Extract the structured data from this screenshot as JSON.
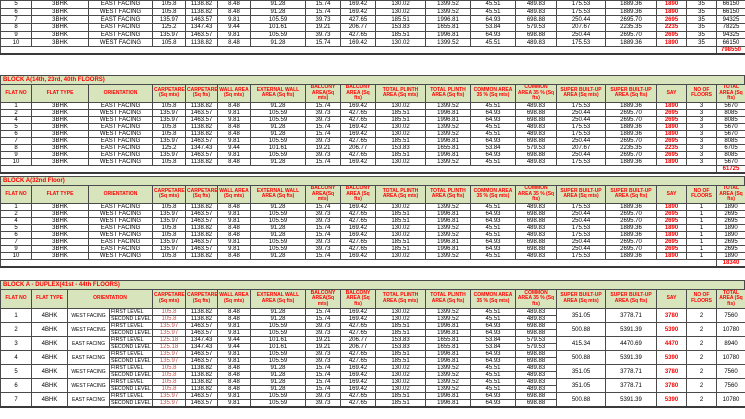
{
  "colors": {
    "header_bg": "#d8e4bc",
    "header_text": "#ff0000",
    "say_text": "#ff0000",
    "duplex_carpet_text": "#c0504d",
    "grid_border": "#4a4a4a"
  },
  "columns": [
    "FLAT NO",
    "FLAT TYPE",
    "ORIENTATION",
    "CARPETAREA (Sq mts)",
    "CARPETAREA (Sq fts)",
    "WALL AREA (Sq mts)",
    "EXTERNAL WALL AREA (Sq fts)",
    "BALCONY AREA(Sq mts)",
    "BALCONY AREA (Sq fts)",
    "TOTAL PLINTH AREA (Sq mts)",
    "TOTAL PLINTH AREA (Sq fts)",
    "COMMON AREA 35 % (Sq mts)",
    "COMMON AREA 35 % (Sq fts)",
    "SUPER BUILT-UP AREA (Sq mts)",
    "SUPER BUILT-UP AREA (Sq fts)",
    "SAY",
    "NO OF FLOORS",
    "TOTAL AREA (Sq fts)"
  ],
  "tables": {
    "top": {
      "rows": [
        [
          "5",
          "3BHK",
          "EAST FACING",
          "105.8",
          "1138.82",
          "8.48",
          "91.28",
          "15.74",
          "169.42",
          "130.02",
          "1399.52",
          "45.51",
          "489.83",
          "175.53",
          "1889.36",
          "1890",
          "35",
          "66150"
        ],
        [
          "6",
          "3BHK",
          "WEST FACING",
          "105.8",
          "1138.82",
          "8.48",
          "91.28",
          "15.74",
          "169.42",
          "130.02",
          "1399.52",
          "45.51",
          "489.83",
          "175.53",
          "1889.36",
          "1890",
          "35",
          "66150"
        ],
        [
          "7",
          "3BHK",
          "EAST FACING",
          "135.97",
          "1463.57",
          "9.81",
          "105.59",
          "39.73",
          "427.65",
          "185.51",
          "1996.81",
          "64.93",
          "698.88",
          "250.44",
          "2695.70",
          "2695",
          "35",
          "94325"
        ],
        [
          "8",
          "3BHK",
          "EAST FACING",
          "125.2",
          "1347.43",
          "9.44",
          "101.61",
          "19.21",
          "206.77",
          "153.83",
          "1655.81",
          "53.84",
          "579.53",
          "207.67",
          "2235.35",
          "2235",
          "35",
          "78225"
        ],
        [
          "9",
          "3BHK",
          "EAST FACING",
          "135.97",
          "1463.57",
          "9.81",
          "105.59",
          "39.73",
          "427.65",
          "185.51",
          "1996.81",
          "64.93",
          "698.88",
          "250.44",
          "2695.70",
          "2695",
          "35",
          "94325"
        ],
        [
          "10",
          "3BHK",
          "WEST FACING",
          "105.8",
          "1138.82",
          "8.48",
          "91.28",
          "15.74",
          "169.42",
          "130.02",
          "1399.52",
          "45.51",
          "489.83",
          "175.53",
          "1889.36",
          "1890",
          "35",
          "66150"
        ]
      ],
      "total": "798550"
    },
    "floors_14_23_40": {
      "title": "BLOCK A(14th, 23rd, 40th FLOORS)",
      "rows": [
        [
          "1",
          "3BHK",
          "EAST FACING",
          "105.8",
          "1138.82",
          "8.48",
          "91.28",
          "15.74",
          "169.42",
          "130.02",
          "1399.52",
          "45.51",
          "489.83",
          "175.53",
          "1889.36",
          "1890",
          "3",
          "5670"
        ],
        [
          "2",
          "3BHK",
          "WEST FACING",
          "135.97",
          "1463.57",
          "9.81",
          "105.59",
          "39.73",
          "427.65",
          "185.51",
          "1996.81",
          "64.93",
          "698.88",
          "250.44",
          "2695.70",
          "2695",
          "3",
          "8085"
        ],
        [
          "4",
          "3BHK",
          "WEST FACING",
          "135.97",
          "1463.57",
          "9.81",
          "105.59",
          "39.73",
          "427.65",
          "185.51",
          "1996.81",
          "64.93",
          "698.88",
          "250.44",
          "2695.70",
          "2695",
          "3",
          "8085"
        ],
        [
          "5",
          "3BHK",
          "EAST FACING",
          "105.8",
          "1138.82",
          "8.48",
          "91.28",
          "15.74",
          "169.42",
          "130.02",
          "1399.52",
          "45.51",
          "489.83",
          "175.53",
          "1889.36",
          "1890",
          "3",
          "5670"
        ],
        [
          "6",
          "3BHK",
          "WEST FACING",
          "105.8",
          "1138.82",
          "8.48",
          "91.28",
          "15.74",
          "169.42",
          "130.02",
          "1399.52",
          "45.51",
          "489.83",
          "175.53",
          "1889.36",
          "1890",
          "3",
          "5670"
        ],
        [
          "7",
          "3BHK",
          "EAST FACING",
          "135.97",
          "1463.57",
          "9.81",
          "105.59",
          "39.73",
          "427.65",
          "185.51",
          "1996.81",
          "64.93",
          "698.88",
          "250.44",
          "2695.70",
          "2695",
          "3",
          "8085"
        ],
        [
          "8",
          "3BHK",
          "EAST FACING",
          "125.2",
          "1347.43",
          "9.44",
          "101.61",
          "19.21",
          "206.77",
          "153.83",
          "1655.81",
          "53.84",
          "579.53",
          "207.67",
          "2235.35",
          "2235",
          "3",
          "6705"
        ],
        [
          "9",
          "3BHK",
          "EAST FACING",
          "135.97",
          "1463.57",
          "9.81",
          "105.59",
          "39.73",
          "427.65",
          "185.51",
          "1996.81",
          "64.93",
          "698.88",
          "250.44",
          "2695.70",
          "2695",
          "3",
          "8085"
        ],
        [
          "10",
          "3BHK",
          "WEST FACING",
          "105.8",
          "1138.82",
          "8.48",
          "91.28",
          "15.74",
          "169.42",
          "130.02",
          "1399.52",
          "45.51",
          "489.83",
          "175.53",
          "1889.36",
          "1890",
          "3",
          "5670"
        ]
      ],
      "total": "61725"
    },
    "floor_32": {
      "title": "BLOCK A(32nd Floor)",
      "rows": [
        [
          "1",
          "3BHK",
          "EAST FACING",
          "105.8",
          "1138.82",
          "8.48",
          "91.28",
          "15.74",
          "169.42",
          "130.02",
          "1399.52",
          "45.51",
          "489.83",
          "175.53",
          "1889.36",
          "1890",
          "1",
          "1890"
        ],
        [
          "2",
          "3BHK",
          "WEST FACING",
          "135.97",
          "1463.57",
          "9.81",
          "105.59",
          "39.73",
          "427.65",
          "185.51",
          "1996.81",
          "64.93",
          "698.88",
          "250.44",
          "2695.70",
          "2695",
          "1",
          "2695"
        ],
        [
          "4",
          "3BHK",
          "WEST FACING",
          "135.97",
          "1463.57",
          "9.81",
          "105.59",
          "39.73",
          "427.65",
          "185.51",
          "1996.81",
          "64.93",
          "698.88",
          "250.44",
          "2695.70",
          "2695",
          "1",
          "2695"
        ],
        [
          "5",
          "3BHK",
          "EAST FACING",
          "105.8",
          "1138.82",
          "8.48",
          "91.28",
          "15.74",
          "169.42",
          "130.02",
          "1399.52",
          "45.51",
          "489.83",
          "175.53",
          "1889.36",
          "1890",
          "1",
          "1890"
        ],
        [
          "6",
          "3BHK",
          "WEST FACING",
          "105.8",
          "1138.82",
          "8.48",
          "91.28",
          "15.74",
          "169.42",
          "130.02",
          "1399.52",
          "45.51",
          "489.83",
          "175.53",
          "1889.36",
          "1890",
          "1",
          "1890"
        ],
        [
          "7",
          "3BHK",
          "EAST FACING",
          "135.97",
          "1463.57",
          "9.81",
          "105.59",
          "39.73",
          "427.65",
          "185.51",
          "1996.81",
          "64.93",
          "698.88",
          "250.44",
          "2695.70",
          "2695",
          "1",
          "2695"
        ],
        [
          "9",
          "3BHK",
          "EAST FACING",
          "135.97",
          "1463.57",
          "9.81",
          "105.59",
          "39.73",
          "427.65",
          "185.51",
          "1996.81",
          "64.93",
          "698.88",
          "250.44",
          "2695.70",
          "2695",
          "1",
          "2695"
        ],
        [
          "10",
          "3BHK",
          "WEST FACING",
          "105.8",
          "1138.82",
          "8.48",
          "91.28",
          "15.74",
          "169.42",
          "130.02",
          "1399.52",
          "45.51",
          "489.83",
          "175.53",
          "1889.36",
          "1890",
          "1",
          "1890"
        ]
      ],
      "total": "18340"
    },
    "duplex": {
      "title": "BLOCK A - DUPLEX(41st - 44th  FLOORS)",
      "level_labels": [
        "FIRST LEVEL",
        "SECOND LEVEL"
      ],
      "flats": [
        {
          "no": "1",
          "type": "4BHK",
          "orientation": "WEST FACING",
          "levels": [
            [
              "105.8",
              "1138.82",
              "8.48",
              "91.28",
              "15.74",
              "169.42",
              "130.02",
              "1399.52",
              "45.51",
              "489.83"
            ],
            [
              "105.8",
              "1138.82",
              "8.48",
              "91.28",
              "15.74",
              "169.42",
              "130.02",
              "1399.52",
              "45.51",
              "489.83"
            ]
          ],
          "merged": [
            "351.05",
            "3778.71",
            "3780",
            "2",
            "7560"
          ]
        },
        {
          "no": "2",
          "type": "4BHK",
          "orientation": "WEST FACING",
          "levels": [
            [
              "135.97",
              "1463.57",
              "9.81",
              "105.59",
              "39.73",
              "427.65",
              "185.51",
              "1996.81",
              "64.93",
              "698.88"
            ],
            [
              "135.97",
              "1463.57",
              "9.81",
              "105.59",
              "39.73",
              "427.65",
              "185.51",
              "1996.81",
              "64.93",
              "698.88"
            ]
          ],
          "merged": [
            "500.88",
            "5391.39",
            "5390",
            "2",
            "10780"
          ]
        },
        {
          "no": "3",
          "type": "4BHK",
          "orientation": "EAST FACING",
          "levels": [
            [
              "125.18",
              "1347.43",
              "9.44",
              "101.61",
              "19.21",
              "206.77",
              "153.83",
              "1655.81",
              "53.84",
              "579.53"
            ],
            [
              "125.18",
              "1347.43",
              "9.44",
              "101.61",
              "19.21",
              "206.77",
              "153.83",
              "1655.81",
              "53.84",
              "579.53"
            ]
          ],
          "merged": [
            "415.34",
            "4470.69",
            "4470",
            "2",
            "8940"
          ]
        },
        {
          "no": "4",
          "type": "4BHK",
          "orientation": "EAST FACING",
          "levels": [
            [
              "135.97",
              "1463.57",
              "9.81",
              "105.59",
              "39.73",
              "427.65",
              "185.51",
              "1996.81",
              "64.93",
              "698.88"
            ],
            [
              "135.97",
              "1463.57",
              "9.81",
              "105.59",
              "39.73",
              "427.65",
              "185.51",
              "1996.81",
              "64.93",
              "698.88"
            ]
          ],
          "merged": [
            "500.88",
            "5391.39",
            "5390",
            "2",
            "10780"
          ]
        },
        {
          "no": "5",
          "type": "4BHK",
          "orientation": "WEST FACING",
          "levels": [
            [
              "105.8",
              "1138.82",
              "8.48",
              "91.28",
              "15.74",
              "169.42",
              "130.02",
              "1399.52",
              "45.51",
              "489.83"
            ],
            [
              "105.8",
              "1138.82",
              "8.48",
              "91.28",
              "15.74",
              "169.42",
              "130.02",
              "1399.52",
              "45.51",
              "489.83"
            ]
          ],
          "merged": [
            "351.05",
            "3778.71",
            "3780",
            "2",
            "7560"
          ]
        },
        {
          "no": "6",
          "type": "4BHK",
          "orientation": "WEST FACING",
          "levels": [
            [
              "105.8",
              "1138.82",
              "8.48",
              "91.28",
              "15.74",
              "169.42",
              "130.02",
              "1399.52",
              "45.51",
              "489.83"
            ],
            [
              "105.8",
              "1138.82",
              "8.48",
              "91.28",
              "15.74",
              "169.42",
              "130.02",
              "1399.52",
              "45.51",
              "489.83"
            ]
          ],
          "merged": [
            "351.05",
            "3778.71",
            "3780",
            "2",
            "7560"
          ]
        },
        {
          "no": "7",
          "type": "4BHK",
          "orientation": "EAST FACING",
          "levels": [
            [
              "135.97",
              "1463.57",
              "9.81",
              "105.59",
              "39.73",
              "427.65",
              "185.51",
              "1996.81",
              "64.93",
              "698.88"
            ],
            [
              "135.97",
              "1463.57",
              "9.81",
              "105.59",
              "39.73",
              "427.65",
              "185.51",
              "1996.81",
              "64.93",
              "698.88"
            ]
          ],
          "merged": [
            "500.88",
            "5391.39",
            "5390",
            "2",
            "10780"
          ]
        }
      ]
    }
  }
}
